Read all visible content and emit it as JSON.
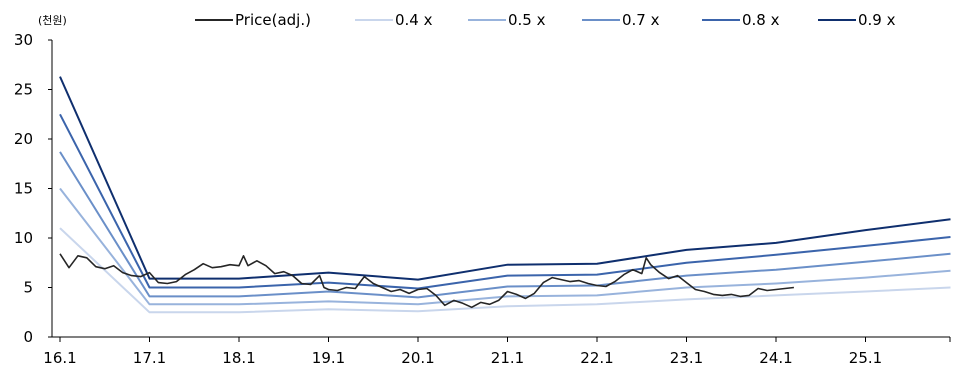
{
  "chart_data": {
    "type": "line",
    "unit_label": "(천원)",
    "x_ticks": [
      "16.1",
      "17.1",
      "18.1",
      "19.1",
      "20.1",
      "21.1",
      "22.1",
      "23.1",
      "24.1",
      "25.1"
    ],
    "ylim": [
      0,
      30
    ],
    "y_ticks": [
      0,
      5,
      10,
      15,
      20,
      25,
      30
    ],
    "grid": false,
    "legend_position": "top",
    "series": [
      {
        "name": "Price(adj.)",
        "color": "#262626",
        "points": [
          [
            0.0,
            8.4
          ],
          [
            0.1,
            7.0
          ],
          [
            0.2,
            8.2
          ],
          [
            0.3,
            8.0
          ],
          [
            0.4,
            7.1
          ],
          [
            0.5,
            6.9
          ],
          [
            0.6,
            7.2
          ],
          [
            0.7,
            6.5
          ],
          [
            0.8,
            6.2
          ],
          [
            0.9,
            6.1
          ],
          [
            1.0,
            6.5
          ],
          [
            1.1,
            5.5
          ],
          [
            1.2,
            5.4
          ],
          [
            1.3,
            5.6
          ],
          [
            1.4,
            6.3
          ],
          [
            1.5,
            6.8
          ],
          [
            1.6,
            7.4
          ],
          [
            1.7,
            7.0
          ],
          [
            1.8,
            7.1
          ],
          [
            1.9,
            7.3
          ],
          [
            2.0,
            7.2
          ],
          [
            2.05,
            8.2
          ],
          [
            2.1,
            7.2
          ],
          [
            2.2,
            7.7
          ],
          [
            2.3,
            7.2
          ],
          [
            2.4,
            6.4
          ],
          [
            2.5,
            6.6
          ],
          [
            2.6,
            6.2
          ],
          [
            2.7,
            5.4
          ],
          [
            2.8,
            5.3
          ],
          [
            2.9,
            6.2
          ],
          [
            2.95,
            5.0
          ],
          [
            3.0,
            4.8
          ],
          [
            3.1,
            4.7
          ],
          [
            3.2,
            5.0
          ],
          [
            3.3,
            4.9
          ],
          [
            3.4,
            6.1
          ],
          [
            3.5,
            5.4
          ],
          [
            3.6,
            5.0
          ],
          [
            3.7,
            4.6
          ],
          [
            3.8,
            4.8
          ],
          [
            3.9,
            4.4
          ],
          [
            4.0,
            4.8
          ],
          [
            4.1,
            4.9
          ],
          [
            4.2,
            4.2
          ],
          [
            4.3,
            3.2
          ],
          [
            4.4,
            3.7
          ],
          [
            4.5,
            3.4
          ],
          [
            4.6,
            3.0
          ],
          [
            4.7,
            3.5
          ],
          [
            4.8,
            3.3
          ],
          [
            4.9,
            3.7
          ],
          [
            5.0,
            4.6
          ],
          [
            5.1,
            4.3
          ],
          [
            5.2,
            3.9
          ],
          [
            5.3,
            4.4
          ],
          [
            5.4,
            5.5
          ],
          [
            5.5,
            6.0
          ],
          [
            5.6,
            5.8
          ],
          [
            5.7,
            5.6
          ],
          [
            5.8,
            5.7
          ],
          [
            5.9,
            5.4
          ],
          [
            6.0,
            5.2
          ],
          [
            6.1,
            5.1
          ],
          [
            6.2,
            5.6
          ],
          [
            6.3,
            6.3
          ],
          [
            6.4,
            6.8
          ],
          [
            6.5,
            6.4
          ],
          [
            6.55,
            8.0
          ],
          [
            6.6,
            7.3
          ],
          [
            6.7,
            6.5
          ],
          [
            6.8,
            5.9
          ],
          [
            6.9,
            6.2
          ],
          [
            7.0,
            5.5
          ],
          [
            7.1,
            4.8
          ],
          [
            7.2,
            4.6
          ],
          [
            7.3,
            4.3
          ],
          [
            7.4,
            4.2
          ],
          [
            7.5,
            4.3
          ],
          [
            7.6,
            4.1
          ],
          [
            7.7,
            4.2
          ],
          [
            7.8,
            4.9
          ],
          [
            7.9,
            4.7
          ],
          [
            8.0,
            4.8
          ],
          [
            8.1,
            4.9
          ],
          [
            8.2,
            5.0
          ]
        ]
      },
      {
        "name": "0.4 x",
        "color": "#c9d6ec",
        "points": [
          [
            0,
            11.0
          ],
          [
            1.0,
            2.5
          ],
          [
            2.0,
            2.5
          ],
          [
            3.0,
            2.8
          ],
          [
            4.0,
            2.6
          ],
          [
            5.0,
            3.1
          ],
          [
            6.0,
            3.3
          ],
          [
            7.0,
            3.8
          ],
          [
            8.0,
            4.2
          ],
          [
            9.0,
            4.6
          ],
          [
            9.95,
            5.0
          ]
        ]
      },
      {
        "name": "0.5 x",
        "color": "#98b3dc",
        "points": [
          [
            0,
            15.0
          ],
          [
            1.0,
            3.3
          ],
          [
            2.0,
            3.3
          ],
          [
            3.0,
            3.6
          ],
          [
            4.0,
            3.3
          ],
          [
            5.0,
            4.1
          ],
          [
            6.0,
            4.2
          ],
          [
            7.0,
            5.0
          ],
          [
            8.0,
            5.4
          ],
          [
            9.0,
            6.0
          ],
          [
            9.95,
            6.7
          ]
        ]
      },
      {
        "name": "0.7 x",
        "color": "#6a8fc8",
        "points": [
          [
            0,
            18.7
          ],
          [
            1.0,
            4.1
          ],
          [
            2.0,
            4.1
          ],
          [
            3.0,
            4.6
          ],
          [
            4.0,
            4.0
          ],
          [
            5.0,
            5.1
          ],
          [
            6.0,
            5.2
          ],
          [
            7.0,
            6.2
          ],
          [
            8.0,
            6.8
          ],
          [
            9.0,
            7.6
          ],
          [
            9.95,
            8.4
          ]
        ]
      },
      {
        "name": "0.8 x",
        "color": "#3b64ab",
        "points": [
          [
            0,
            22.5
          ],
          [
            1.0,
            5.0
          ],
          [
            2.0,
            5.0
          ],
          [
            3.0,
            5.5
          ],
          [
            4.0,
            4.9
          ],
          [
            5.0,
            6.2
          ],
          [
            6.0,
            6.3
          ],
          [
            7.0,
            7.5
          ],
          [
            8.0,
            8.3
          ],
          [
            9.0,
            9.2
          ],
          [
            9.95,
            10.1
          ]
        ]
      },
      {
        "name": "0.9 x",
        "color": "#0f2f6e",
        "points": [
          [
            0,
            26.3
          ],
          [
            1.0,
            5.9
          ],
          [
            2.0,
            5.9
          ],
          [
            3.0,
            6.5
          ],
          [
            4.0,
            5.8
          ],
          [
            5.0,
            7.3
          ],
          [
            6.0,
            7.4
          ],
          [
            7.0,
            8.8
          ],
          [
            8.0,
            9.5
          ],
          [
            9.0,
            10.8
          ],
          [
            9.95,
            11.9
          ]
        ]
      }
    ]
  }
}
